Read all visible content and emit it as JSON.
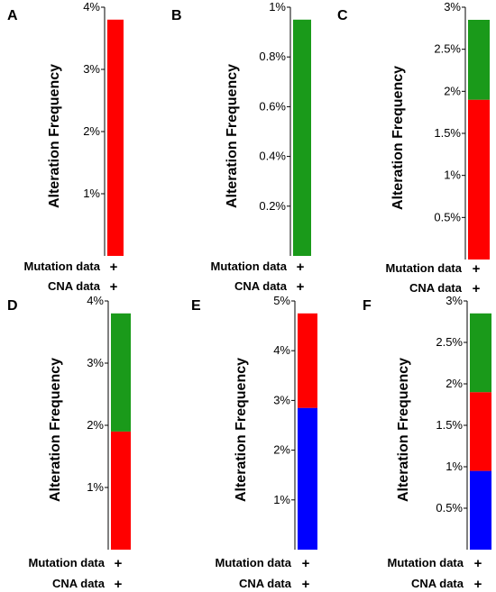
{
  "colors": {
    "mutation": "#ff0000",
    "amplification": "#ff0000",
    "deletion": "#0000ff",
    "multiple": "#1a9a1a"
  },
  "chart_data": [
    {
      "type": "bar",
      "panel": "A",
      "ylabel": "Alteration Frequency",
      "ylim": [
        0,
        4
      ],
      "yticks": [
        1,
        2,
        3,
        4
      ],
      "ytick_labels": [
        "1%",
        "2%",
        "3%",
        "4%"
      ],
      "segments": [
        {
          "value": 3.8,
          "color": "#ff0000"
        }
      ],
      "rows": [
        {
          "label": "Mutation data",
          "mark": "+"
        },
        {
          "label": "CNA data",
          "mark": "+"
        }
      ]
    },
    {
      "type": "bar",
      "panel": "B",
      "ylabel": "Alteration Frequency",
      "ylim": [
        0,
        1
      ],
      "yticks": [
        0.2,
        0.4,
        0.6,
        0.8,
        1.0
      ],
      "ytick_labels": [
        "0.2%",
        "0.4%",
        "0.6%",
        "0.8%",
        "1%"
      ],
      "segments": [
        {
          "value": 0.95,
          "color": "#1a9a1a"
        }
      ],
      "rows": [
        {
          "label": "Mutation data",
          "mark": "+"
        },
        {
          "label": "CNA data",
          "mark": "+"
        }
      ]
    },
    {
      "type": "bar",
      "panel": "C",
      "ylabel": "Alteration Frequency",
      "ylim": [
        0,
        3
      ],
      "yticks": [
        0.5,
        1,
        1.5,
        2,
        2.5,
        3
      ],
      "ytick_labels": [
        "0.5%",
        "1%",
        "1.5%",
        "2%",
        "2.5%",
        "3%"
      ],
      "segments": [
        {
          "value": 1.9,
          "color": "#ff0000"
        },
        {
          "value": 0.95,
          "color": "#1a9a1a"
        }
      ],
      "rows": [
        {
          "label": "Mutation data",
          "mark": "+"
        },
        {
          "label": "CNA data",
          "mark": "+"
        }
      ]
    },
    {
      "type": "bar",
      "panel": "D",
      "ylabel": "Alteration Frequency",
      "ylim": [
        0,
        4
      ],
      "yticks": [
        1,
        2,
        3,
        4
      ],
      "ytick_labels": [
        "1%",
        "2%",
        "3%",
        "4%"
      ],
      "segments": [
        {
          "value": 1.9,
          "color": "#ff0000"
        },
        {
          "value": 1.9,
          "color": "#1a9a1a"
        }
      ],
      "rows": [
        {
          "label": "Mutation data",
          "mark": "+"
        },
        {
          "label": "CNA data",
          "mark": "+"
        }
      ]
    },
    {
      "type": "bar",
      "panel": "E",
      "ylabel": "Alteration Frequency",
      "ylim": [
        0,
        5
      ],
      "yticks": [
        1,
        2,
        3,
        4,
        5
      ],
      "ytick_labels": [
        "1%",
        "2%",
        "3%",
        "4%",
        "5%"
      ],
      "segments": [
        {
          "value": 2.85,
          "color": "#0000ff"
        },
        {
          "value": 1.9,
          "color": "#ff0000"
        }
      ],
      "rows": [
        {
          "label": "Mutation data",
          "mark": "+"
        },
        {
          "label": "CNA data",
          "mark": "+"
        }
      ]
    },
    {
      "type": "bar",
      "panel": "F",
      "ylabel": "Alteration Frequency",
      "ylim": [
        0,
        3
      ],
      "yticks": [
        0.5,
        1,
        1.5,
        2,
        2.5,
        3
      ],
      "ytick_labels": [
        "0.5%",
        "1%",
        "1.5%",
        "2%",
        "2.5%",
        "3%"
      ],
      "segments": [
        {
          "value": 0.95,
          "color": "#0000ff"
        },
        {
          "value": 0.95,
          "color": "#ff0000"
        },
        {
          "value": 0.95,
          "color": "#1a9a1a"
        }
      ],
      "rows": [
        {
          "label": "Mutation data",
          "mark": "+"
        },
        {
          "label": "CNA data",
          "mark": "+"
        }
      ]
    }
  ]
}
